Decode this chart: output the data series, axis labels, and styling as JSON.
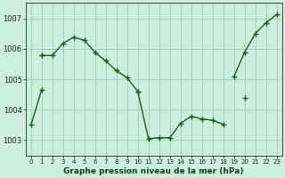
{
  "title": "Graphe pression niveau de la mer (hPa)",
  "bg_color": "#cceedd",
  "grid_color": "#aaccbb",
  "line_color": "#1a5e20",
  "ylim": [
    1002.5,
    1007.5
  ],
  "xlim": [
    -0.5,
    23.5
  ],
  "yticks": [
    1003,
    1004,
    1005,
    1006,
    1007
  ],
  "xticks": [
    0,
    1,
    2,
    3,
    4,
    5,
    6,
    7,
    8,
    9,
    10,
    11,
    12,
    13,
    14,
    15,
    16,
    17,
    18,
    19,
    20,
    21,
    22,
    23
  ],
  "series": [
    [
      1003.5,
      1004.65,
      null,
      null,
      null,
      null,
      null,
      null,
      null,
      null,
      1004.6,
      1003.05,
      1003.08,
      1003.08,
      1003.55,
      1003.78,
      1003.7,
      1003.65,
      1003.52,
      null,
      1004.38,
      null,
      null,
      null
    ],
    [
      null,
      1005.78,
      1005.78,
      1006.18,
      1006.38,
      1006.28,
      1005.88,
      1005.6,
      1005.28,
      1005.05,
      1004.6,
      null,
      null,
      null,
      null,
      null,
      null,
      null,
      null,
      null,
      null,
      null,
      null,
      null
    ],
    [
      null,
      1005.78,
      null,
      null,
      null,
      null,
      null,
      null,
      null,
      null,
      null,
      null,
      null,
      null,
      null,
      null,
      null,
      null,
      null,
      1005.08,
      1005.88,
      1006.5,
      1006.85,
      1007.12
    ]
  ],
  "marker": "+",
  "markersize": 4,
  "linewidth": 1.0
}
